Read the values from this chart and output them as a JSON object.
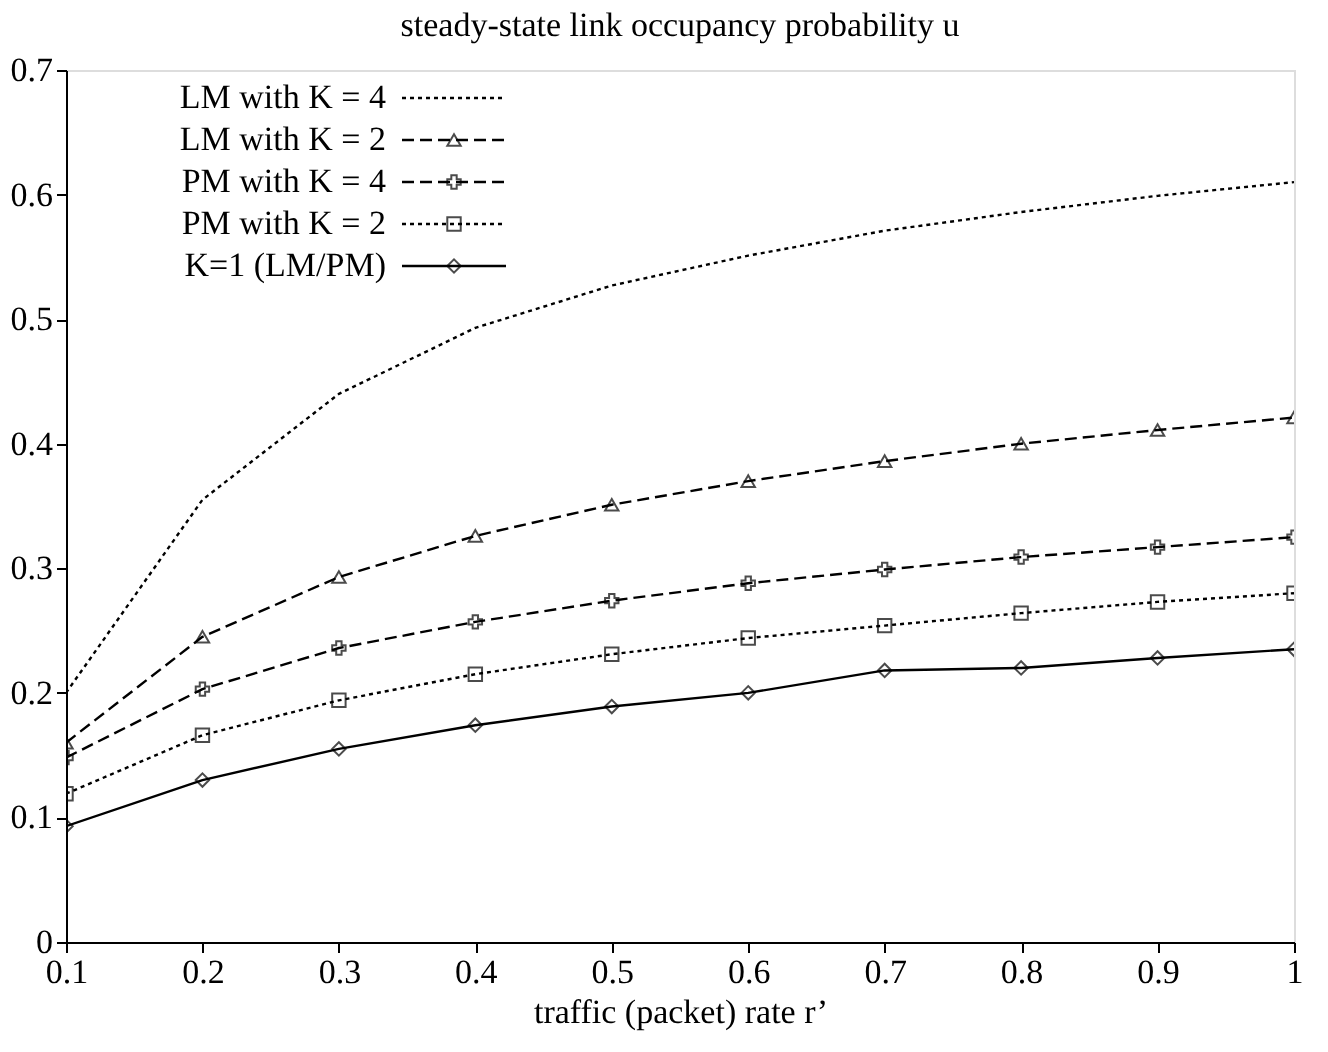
{
  "chart_data": {
    "type": "line",
    "title": "steady-state link occupancy probability u",
    "xlabel": "traffic (packet) rate r’",
    "x": [
      0.1,
      0.2,
      0.3,
      0.4,
      0.5,
      0.6,
      0.7,
      0.8,
      0.9,
      1.0
    ],
    "series": [
      {
        "name": "LM with K = 4",
        "color": "#000000",
        "marker": "none",
        "line_style": "dotted",
        "values": [
          0.2,
          0.355,
          0.44,
          0.493,
          0.527,
          0.551,
          0.571,
          0.586,
          0.599,
          0.61
        ]
      },
      {
        "name": "LM with K = 2",
        "color": "#000000",
        "marker": "triangle",
        "line_style": "dashed",
        "values": [
          0.16,
          0.245,
          0.293,
          0.326,
          0.351,
          0.37,
          0.386,
          0.4,
          0.411,
          0.421
        ]
      },
      {
        "name": "PM with K = 4",
        "color": "#000000",
        "marker": "cross",
        "line_style": "dashed",
        "values": [
          0.148,
          0.203,
          0.236,
          0.257,
          0.274,
          0.288,
          0.299,
          0.309,
          0.317,
          0.325
        ]
      },
      {
        "name": "PM with K = 2",
        "color": "#000000",
        "marker": "square",
        "line_style": "dotted",
        "values": [
          0.119,
          0.166,
          0.194,
          0.215,
          0.231,
          0.244,
          0.254,
          0.264,
          0.273,
          0.28
        ]
      },
      {
        "name": "K=1 (LM/PM)",
        "color": "#000000",
        "marker": "diamond",
        "line_style": "solid",
        "values": [
          0.093,
          0.13,
          0.155,
          0.174,
          0.189,
          0.2,
          0.218,
          0.22,
          0.228,
          0.235
        ]
      }
    ],
    "xlim": [
      0.1,
      1.0
    ],
    "xticks": [
      0.1,
      0.2,
      0.3,
      0.4,
      0.5,
      0.6,
      0.7,
      0.8,
      0.9,
      {
        "value": 1.0,
        "label": "1"
      }
    ],
    "ylim": [
      0,
      0.7
    ],
    "yticks": [
      0,
      0.1,
      0.2,
      0.3,
      0.4,
      0.5,
      0.6,
      0.7
    ],
    "grid": false,
    "legend": "top left"
  }
}
